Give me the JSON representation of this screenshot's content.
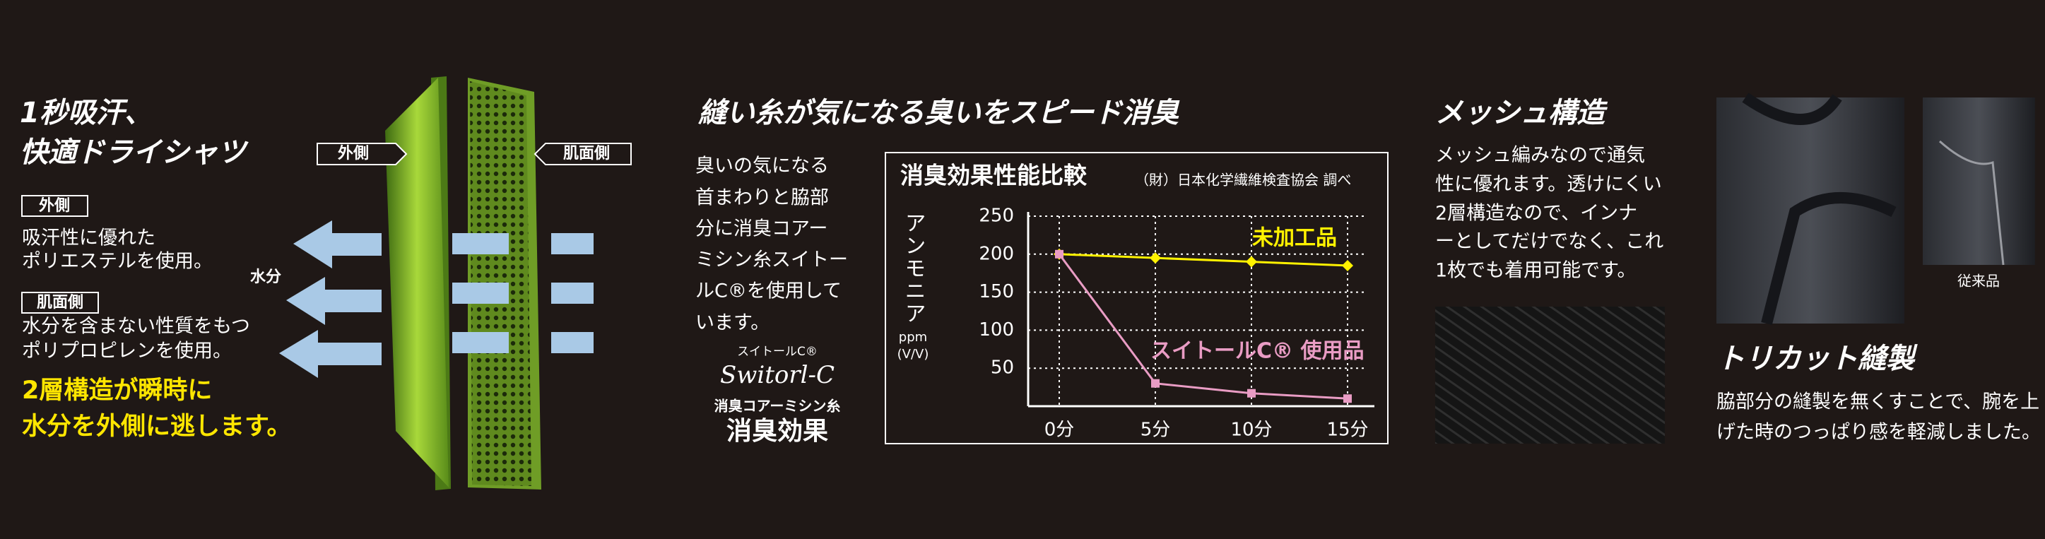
{
  "left": {
    "title": [
      "1秒吸汗、",
      "快適ドライシャツ"
    ],
    "outer": {
      "label": "外側",
      "text": [
        "吸汗性に優れた",
        "ポリエステルを使用。"
      ]
    },
    "inner": {
      "label": "肌面側",
      "text": [
        "水分を含まない性質をもつ",
        "ポリプロピレンを使用。"
      ]
    },
    "highlight": [
      "2層構造が瞬時に",
      "水分を外側に逃します。"
    ],
    "diagram": {
      "outer_tag": "外側",
      "inner_tag": "肌面側",
      "moisture": "水分"
    }
  },
  "middle": {
    "title": "縫い糸が気になる臭いをスピード消臭",
    "text": [
      "臭いの気になる",
      "首まわりと脇部",
      "分に消臭コアー",
      "ミシン糸スイトー",
      "ルC®を使用して",
      "います。"
    ],
    "logo": {
      "kana": "スイトールC®",
      "script": "Switorl-C",
      "thread": "消臭コアーミシン糸",
      "effect": "消臭効果"
    }
  },
  "chart_data": {
    "type": "line",
    "title": "消臭効果性能比較",
    "subtitle": "（財）日本化学繊維検査協会 調べ",
    "y_label": "アンモニア",
    "y_unit": [
      "ppm",
      "(V/V)"
    ],
    "categories": [
      "0分",
      "5分",
      "10分",
      "15分"
    ],
    "series": [
      {
        "name": "未加工品",
        "color": "#fff200",
        "values": [
          200,
          195,
          190,
          185
        ]
      },
      {
        "name": "スイトールC® 使用品",
        "color": "#e99cc4",
        "values": [
          200,
          30,
          17,
          10
        ]
      }
    ],
    "ylim": [
      0,
      250
    ],
    "yticks": [
      50,
      100,
      150,
      200,
      250
    ],
    "grid": true
  },
  "right": {
    "title": "メッシュ構造",
    "text": [
      "メッシュ編みなので通気",
      "性に優れます。透けにくい",
      "2層構造なので、インナ",
      "ーとしてだけでなく、これ",
      "1枚でも着用可能です。"
    ]
  },
  "photo": {
    "caption": "従来品",
    "title": "トリカット縫製",
    "text": [
      "脇部分の縫製を無くすことで、腕を上",
      "げた時のつっぱり感を軽減しました。"
    ]
  }
}
